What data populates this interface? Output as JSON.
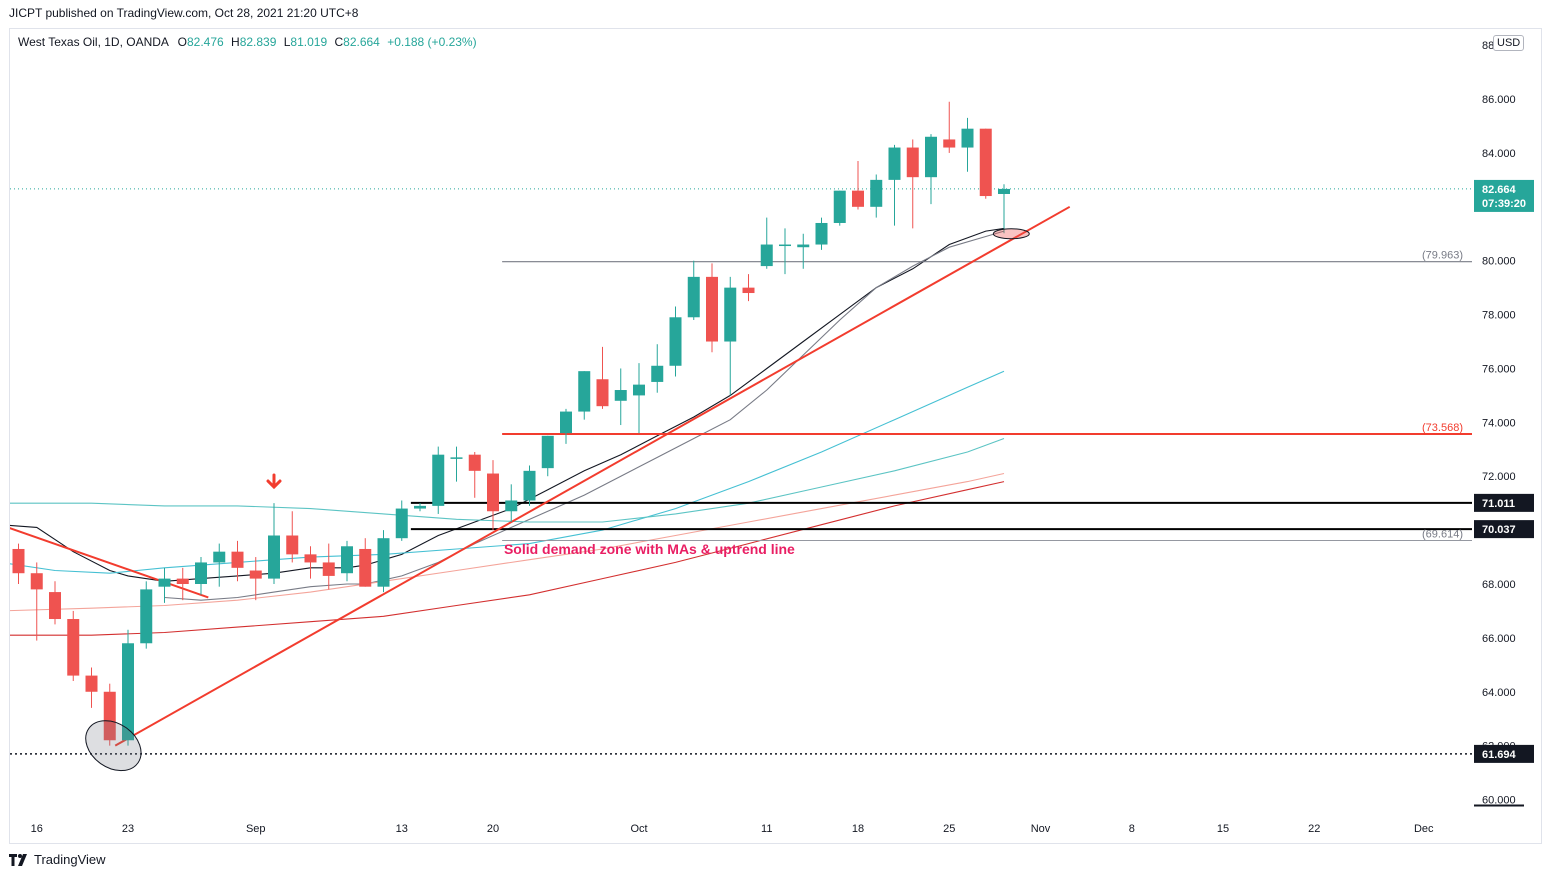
{
  "publisher_line": "JICPT published on TradingView.com, Oct 28, 2021 21:20 UTC+8",
  "legend": {
    "symbol": "West Texas Oil, 1D, OANDA",
    "o_label": "O",
    "o": "82.476",
    "h_label": "H",
    "h": "82.839",
    "l_label": "L",
    "l": "81.019",
    "c_label": "C",
    "c": "82.664",
    "change": "+0.188 (+0.23%)"
  },
  "currency_badge": "USD",
  "footer_brand": "TradingView",
  "colors": {
    "up": "#26a69a",
    "down": "#ef5350",
    "trend": "#f23c2e",
    "ma_black": "#131722",
    "ma_gray": "#787b86",
    "ma_teal": "#45c0d3",
    "ma_teal2": "#5cc4c4",
    "ma_salmon": "#f4a49a",
    "ma_red": "#d32f2f",
    "annotation": "#e91e63"
  },
  "chart_data": {
    "type": "candlestick",
    "symbol": "West Texas Oil",
    "interval": "1D",
    "ylim": [
      59.5,
      88.6
    ],
    "yticks": [
      "60.000",
      "62.000",
      "64.000",
      "66.000",
      "68.000",
      "70.000",
      "72.000",
      "74.000",
      "76.000",
      "78.000",
      "80.000",
      "82.000",
      "84.000",
      "86.000",
      "88.000"
    ],
    "xticks": [
      {
        "label": "16",
        "i": 1
      },
      {
        "label": "23",
        "i": 6
      },
      {
        "label": "Sep",
        "i": 13
      },
      {
        "label": "13",
        "i": 21
      },
      {
        "label": "20",
        "i": 26
      },
      {
        "label": "Oct",
        "i": 34
      },
      {
        "label": "11",
        "i": 41
      },
      {
        "label": "18",
        "i": 46
      },
      {
        "label": "25",
        "i": 51
      },
      {
        "label": "Nov",
        "i": 56
      },
      {
        "label": "8",
        "i": 61
      },
      {
        "label": "15",
        "i": 66
      },
      {
        "label": "22",
        "i": 71
      },
      {
        "label": "Dec",
        "i": 77
      }
    ],
    "candles": [
      {
        "d": "Aug 13",
        "o": 69.3,
        "h": 69.5,
        "l": 68.0,
        "c": 68.4
      },
      {
        "d": "Aug 16",
        "o": 68.4,
        "h": 68.8,
        "l": 65.9,
        "c": 67.8
      },
      {
        "d": "Aug 17",
        "o": 67.7,
        "h": 68.1,
        "l": 66.5,
        "c": 66.7
      },
      {
        "d": "Aug 18",
        "o": 66.7,
        "h": 67.0,
        "l": 64.4,
        "c": 64.6
      },
      {
        "d": "Aug 19",
        "o": 64.6,
        "h": 64.9,
        "l": 63.4,
        "c": 64.0
      },
      {
        "d": "Aug 20",
        "o": 64.0,
        "h": 64.3,
        "l": 62.0,
        "c": 62.2
      },
      {
        "d": "Aug 23",
        "o": 62.2,
        "h": 66.3,
        "l": 62.0,
        "c": 65.8
      },
      {
        "d": "Aug 24",
        "o": 65.8,
        "h": 68.1,
        "l": 65.6,
        "c": 67.8
      },
      {
        "d": "Aug 25",
        "o": 67.9,
        "h": 68.6,
        "l": 67.3,
        "c": 68.2
      },
      {
        "d": "Aug 26",
        "o": 68.2,
        "h": 68.6,
        "l": 67.4,
        "c": 68.0
      },
      {
        "d": "Aug 27",
        "o": 68.0,
        "h": 69.0,
        "l": 67.6,
        "c": 68.8
      },
      {
        "d": "Aug 30",
        "o": 68.8,
        "h": 69.5,
        "l": 67.9,
        "c": 69.2
      },
      {
        "d": "Aug 31",
        "o": 69.2,
        "h": 69.6,
        "l": 68.1,
        "c": 68.6
      },
      {
        "d": "Sep 1",
        "o": 68.5,
        "h": 69.0,
        "l": 67.4,
        "c": 68.2
      },
      {
        "d": "Sep 2",
        "o": 68.2,
        "h": 71.0,
        "l": 68.0,
        "c": 69.8
      },
      {
        "d": "Sep 3",
        "o": 69.8,
        "h": 70.7,
        "l": 68.8,
        "c": 69.1
      },
      {
        "d": "Sep 7",
        "o": 69.1,
        "h": 69.4,
        "l": 68.2,
        "c": 68.8
      },
      {
        "d": "Sep 8",
        "o": 68.8,
        "h": 69.5,
        "l": 67.8,
        "c": 68.3
      },
      {
        "d": "Sep 9",
        "o": 68.4,
        "h": 69.6,
        "l": 68.1,
        "c": 69.4
      },
      {
        "d": "Sep 10",
        "o": 69.3,
        "h": 69.7,
        "l": 67.9,
        "c": 67.9
      },
      {
        "d": "Sep 13",
        "o": 67.9,
        "h": 70.0,
        "l": 67.7,
        "c": 69.7
      },
      {
        "d": "Sep 14",
        "o": 69.7,
        "h": 71.1,
        "l": 69.6,
        "c": 70.8
      },
      {
        "d": "Sep 15",
        "o": 70.8,
        "h": 71.0,
        "l": 70.7,
        "c": 70.9
      },
      {
        "d": "Sep 16",
        "o": 70.9,
        "h": 73.1,
        "l": 70.6,
        "c": 72.8
      },
      {
        "d": "Sep 17",
        "o": 72.7,
        "h": 73.1,
        "l": 71.8,
        "c": 72.7
      },
      {
        "d": "Sep 20",
        "o": 72.8,
        "h": 72.9,
        "l": 71.2,
        "c": 72.2
      },
      {
        "d": "Sep 21",
        "o": 72.1,
        "h": 72.6,
        "l": 70.0,
        "c": 70.7
      },
      {
        "d": "Sep 22",
        "o": 70.7,
        "h": 71.7,
        "l": 70.3,
        "c": 71.1
      },
      {
        "d": "Sep 23",
        "o": 71.1,
        "h": 72.4,
        "l": 70.9,
        "c": 72.2
      },
      {
        "d": "Sep 24",
        "o": 72.3,
        "h": 73.5,
        "l": 72.0,
        "c": 73.5
      },
      {
        "d": "Sep 27",
        "o": 73.6,
        "h": 74.5,
        "l": 73.2,
        "c": 74.4
      },
      {
        "d": "Sep 28",
        "o": 74.4,
        "h": 75.9,
        "l": 74.1,
        "c": 75.9
      },
      {
        "d": "Sep 29",
        "o": 75.6,
        "h": 76.8,
        "l": 74.5,
        "c": 74.6
      },
      {
        "d": "Sep 30",
        "o": 74.8,
        "h": 76.0,
        "l": 73.9,
        "c": 75.2
      },
      {
        "d": "Oct 1",
        "o": 75.0,
        "h": 76.2,
        "l": 73.6,
        "c": 75.4
      },
      {
        "d": "Oct 4",
        "o": 75.5,
        "h": 76.9,
        "l": 75.1,
        "c": 76.1
      },
      {
        "d": "Oct 5",
        "o": 76.1,
        "h": 78.3,
        "l": 75.7,
        "c": 77.9
      },
      {
        "d": "Oct 6",
        "o": 77.9,
        "h": 80.0,
        "l": 77.8,
        "c": 79.4
      },
      {
        "d": "Oct 7",
        "o": 79.4,
        "h": 79.9,
        "l": 76.6,
        "c": 77.0
      },
      {
        "d": "Oct 8",
        "o": 77.0,
        "h": 79.4,
        "l": 75.0,
        "c": 79.0
      },
      {
        "d": "Oct 11",
        "o": 79.0,
        "h": 79.5,
        "l": 78.5,
        "c": 78.8
      },
      {
        "d": "Oct 12",
        "o": 79.8,
        "h": 81.6,
        "l": 79.7,
        "c": 80.6
      },
      {
        "d": "Oct 13",
        "o": 80.6,
        "h": 81.2,
        "l": 79.5,
        "c": 80.6
      },
      {
        "d": "Oct 14",
        "o": 80.5,
        "h": 81.0,
        "l": 79.7,
        "c": 80.6
      },
      {
        "d": "Oct 15",
        "o": 80.6,
        "h": 81.6,
        "l": 80.4,
        "c": 81.4
      },
      {
        "d": "Oct 18",
        "o": 81.4,
        "h": 82.6,
        "l": 81.3,
        "c": 82.6
      },
      {
        "d": "Oct 19",
        "o": 82.6,
        "h": 83.7,
        "l": 81.9,
        "c": 82.0
      },
      {
        "d": "Oct 20",
        "o": 82.0,
        "h": 83.2,
        "l": 81.6,
        "c": 83.0
      },
      {
        "d": "Oct 21",
        "o": 83.0,
        "h": 84.3,
        "l": 81.3,
        "c": 84.2
      },
      {
        "d": "Oct 22",
        "o": 84.2,
        "h": 84.5,
        "l": 81.2,
        "c": 83.1
      },
      {
        "d": "Oct 25",
        "o": 83.1,
        "h": 84.7,
        "l": 82.1,
        "c": 84.6
      },
      {
        "d": "Oct 26",
        "o": 84.5,
        "h": 85.9,
        "l": 84.0,
        "c": 84.2
      },
      {
        "d": "Oct 27",
        "o": 84.2,
        "h": 85.3,
        "l": 83.3,
        "c": 84.9
      },
      {
        "d": "Oct 28",
        "o": 84.9,
        "h": 84.9,
        "l": 82.3,
        "c": 82.4
      },
      {
        "d": "Oct 29",
        "o": 82.476,
        "h": 82.839,
        "l": 81.019,
        "c": 82.664
      }
    ],
    "moving_averages": [
      {
        "color": "ma_black",
        "points": [
          [
            -1,
            70.2
          ],
          [
            1,
            70.1
          ],
          [
            3,
            69.2
          ],
          [
            5,
            68.5
          ],
          [
            6,
            68.3
          ],
          [
            8,
            68.1
          ],
          [
            10,
            68.2
          ],
          [
            12,
            68.3
          ],
          [
            14,
            68.4
          ],
          [
            16,
            68.6
          ],
          [
            18,
            68.6
          ],
          [
            19,
            68.7
          ],
          [
            21,
            69.1
          ],
          [
            23,
            69.8
          ],
          [
            25,
            70.3
          ],
          [
            27,
            70.8
          ],
          [
            29,
            71.5
          ],
          [
            31,
            72.2
          ],
          [
            33,
            72.8
          ],
          [
            35,
            73.5
          ],
          [
            37,
            74.2
          ],
          [
            39,
            75.0
          ],
          [
            41,
            76.0
          ],
          [
            43,
            77.0
          ],
          [
            45,
            78.0
          ],
          [
            47,
            79.0
          ],
          [
            49,
            79.7
          ],
          [
            51,
            80.6
          ],
          [
            53,
            81.1
          ],
          [
            54,
            81.2
          ]
        ]
      },
      {
        "color": "ma_gray",
        "points": [
          [
            8,
            67.5
          ],
          [
            10,
            67.4
          ],
          [
            12,
            67.5
          ],
          [
            14,
            67.7
          ],
          [
            16,
            67.9
          ],
          [
            18,
            68.0
          ],
          [
            19,
            68.0
          ],
          [
            21,
            68.3
          ],
          [
            23,
            68.8
          ],
          [
            25,
            69.5
          ],
          [
            27,
            70.1
          ],
          [
            29,
            70.7
          ],
          [
            31,
            71.3
          ],
          [
            33,
            72.0
          ],
          [
            35,
            72.7
          ],
          [
            37,
            73.4
          ],
          [
            39,
            74.1
          ],
          [
            41,
            75.2
          ],
          [
            43,
            76.5
          ],
          [
            45,
            77.8
          ],
          [
            47,
            79.0
          ],
          [
            49,
            79.8
          ],
          [
            51,
            80.5
          ],
          [
            53,
            80.9
          ],
          [
            54,
            81.1
          ]
        ]
      },
      {
        "color": "ma_teal",
        "points": [
          [
            -1,
            68.8
          ],
          [
            2,
            68.5
          ],
          [
            5,
            68.4
          ],
          [
            8,
            68.6
          ],
          [
            12,
            68.8
          ],
          [
            16,
            69.0
          ],
          [
            20,
            69.1
          ],
          [
            24,
            69.3
          ],
          [
            28,
            69.5
          ],
          [
            32,
            70.0
          ],
          [
            36,
            70.8
          ],
          [
            40,
            71.8
          ],
          [
            44,
            72.9
          ],
          [
            48,
            74.1
          ],
          [
            52,
            75.3
          ],
          [
            54,
            75.9
          ]
        ]
      },
      {
        "color": "ma_teal2",
        "points": [
          [
            -1,
            71.0
          ],
          [
            4,
            71.0
          ],
          [
            8,
            70.9
          ],
          [
            12,
            70.9
          ],
          [
            16,
            70.8
          ],
          [
            20,
            70.6
          ],
          [
            24,
            70.4
          ],
          [
            28,
            70.3
          ],
          [
            32,
            70.3
          ],
          [
            36,
            70.6
          ],
          [
            40,
            71.0
          ],
          [
            44,
            71.6
          ],
          [
            48,
            72.2
          ],
          [
            52,
            72.9
          ],
          [
            54,
            73.4
          ]
        ]
      },
      {
        "color": "ma_salmon",
        "points": [
          [
            -1,
            67.0
          ],
          [
            4,
            67.1
          ],
          [
            8,
            67.2
          ],
          [
            12,
            67.4
          ],
          [
            16,
            67.7
          ],
          [
            20,
            68.1
          ],
          [
            24,
            68.5
          ],
          [
            28,
            68.9
          ],
          [
            32,
            69.3
          ],
          [
            36,
            69.8
          ],
          [
            40,
            70.3
          ],
          [
            44,
            70.8
          ],
          [
            48,
            71.3
          ],
          [
            52,
            71.8
          ],
          [
            54,
            72.1
          ]
        ]
      },
      {
        "color": "ma_red",
        "points": [
          [
            -1,
            66.1
          ],
          [
            4,
            66.1
          ],
          [
            8,
            66.2
          ],
          [
            12,
            66.4
          ],
          [
            16,
            66.6
          ],
          [
            20,
            66.8
          ],
          [
            24,
            67.2
          ],
          [
            28,
            67.6
          ],
          [
            32,
            68.2
          ],
          [
            36,
            68.8
          ],
          [
            40,
            69.5
          ],
          [
            44,
            70.2
          ],
          [
            48,
            70.9
          ],
          [
            52,
            71.5
          ],
          [
            54,
            71.8
          ]
        ]
      }
    ],
    "trendlines": [
      {
        "name": "uptrend",
        "points": [
          [
            5.3,
            62.0
          ],
          [
            57.6,
            82.0
          ]
        ]
      },
      {
        "name": "downtrend",
        "points": [
          [
            -1,
            70.2
          ],
          [
            10.4,
            67.5
          ]
        ]
      }
    ],
    "horizontal_levels": [
      {
        "value": 79.963,
        "label": "(79.963)",
        "style": "gray",
        "from": 26.5
      },
      {
        "value": 73.568,
        "label": "(73.568)",
        "style": "red",
        "from": 26.5
      },
      {
        "value": 71.011,
        "label": "71.011",
        "style": "black",
        "from": 21.5
      },
      {
        "value": 70.037,
        "label": "70.037",
        "style": "black",
        "from": 21.5
      },
      {
        "value": 69.614,
        "label": "(69.614)",
        "style": "thin",
        "from": 26.5
      },
      {
        "value": 61.694,
        "label": "61.694",
        "style": "dotted",
        "from": -1
      }
    ],
    "last_price": {
      "value": 82.664,
      "label": "82.664",
      "countdown": "07:39:20"
    },
    "annotations": {
      "zone_text": "Solid demand zone with MAs & uptrend line",
      "arrow_at": 14,
      "ellipse_low_at": 5.2,
      "ellipse_recent_at": 54.4
    }
  }
}
